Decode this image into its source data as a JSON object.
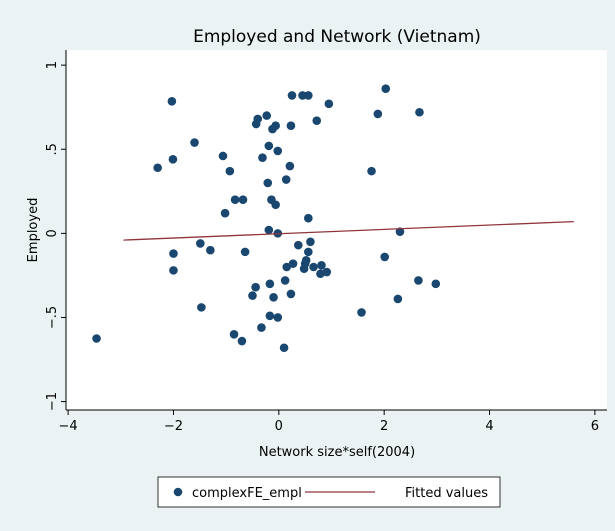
{
  "chart_data": {
    "type": "scatter",
    "title": "Employed and Network (Vietnam)",
    "x_label": "Network size*self(2004)",
    "y_label": "Employed",
    "xlim": [
      -4.04,
      6.23
    ],
    "ylim": [
      -1.05,
      1.09
    ],
    "xticks": [
      {
        "value": -4,
        "label": "−4"
      },
      {
        "value": -2,
        "label": "−2"
      },
      0,
      2,
      4,
      6
    ],
    "yticks": [
      {
        "value": -1,
        "label": "−1"
      },
      {
        "value": -0.5,
        "label": "−.5"
      },
      0,
      {
        "value": 0.5,
        "label": ".5"
      },
      1
    ],
    "series": [
      {
        "name": "complexFE_empl",
        "color": "#1a476f",
        "kind": "scatter",
        "x": [
          -3.46,
          -2.03,
          -2.01,
          -2.3,
          -1.6,
          -2,
          -2,
          -1.49,
          -1.3,
          -1.47,
          -1.06,
          -0.93,
          -1.02,
          -0.83,
          -0.68,
          -0.64,
          -0.85,
          -0.7,
          -0.5,
          -0.44,
          -0.4,
          -0.43,
          -0.31,
          -0.23,
          -0.12,
          -0.06,
          -0.19,
          -0.02,
          -0.21,
          -0.14,
          -0.06,
          -0.19,
          -0.02,
          -0.1,
          -0.17,
          -0.33,
          -0.17,
          -0.02,
          0.1,
          0.14,
          0.21,
          0.25,
          0.23,
          0.27,
          0.15,
          0.12,
          0.23,
          0.37,
          0.48,
          0.5,
          0.56,
          0.6,
          0.56,
          0.66,
          0.79,
          0.81,
          0.91,
          0.95,
          0.72,
          0.45,
          0.56,
          0.52,
          1.76,
          1.88,
          2.03,
          2.67,
          2.3,
          2.01,
          1.57,
          2.26,
          2.65,
          2.98
        ],
        "values": [
          -0.625,
          0.785,
          0.44,
          0.39,
          0.54,
          -0.12,
          -0.22,
          -0.06,
          -0.1,
          -0.44,
          0.46,
          0.37,
          0.12,
          0.2,
          0.2,
          -0.11,
          -0.6,
          -0.64,
          -0.37,
          -0.32,
          0.68,
          0.65,
          0.45,
          0.7,
          0.62,
          0.64,
          0.52,
          0.49,
          0.3,
          0.2,
          0.17,
          0.02,
          0,
          -0.38,
          -0.3,
          -0.56,
          -0.49,
          -0.5,
          -0.68,
          0.32,
          0.4,
          0.82,
          0.64,
          -0.18,
          -0.2,
          -0.28,
          -0.36,
          -0.07,
          -0.21,
          -0.18,
          -0.11,
          -0.05,
          0.09,
          -0.2,
          -0.24,
          -0.19,
          -0.23,
          0.77,
          0.67,
          0.82,
          0.82,
          -0.16,
          0.37,
          0.71,
          0.86,
          0.72,
          0.01,
          -0.14,
          -0.47,
          -0.39,
          -0.28,
          -0.3
        ]
      },
      {
        "name": "Fitted values",
        "color": "#90353b",
        "kind": "line",
        "x": [
          -2.95,
          5.6
        ],
        "values": [
          -0.04,
          0.07
        ]
      }
    ]
  }
}
